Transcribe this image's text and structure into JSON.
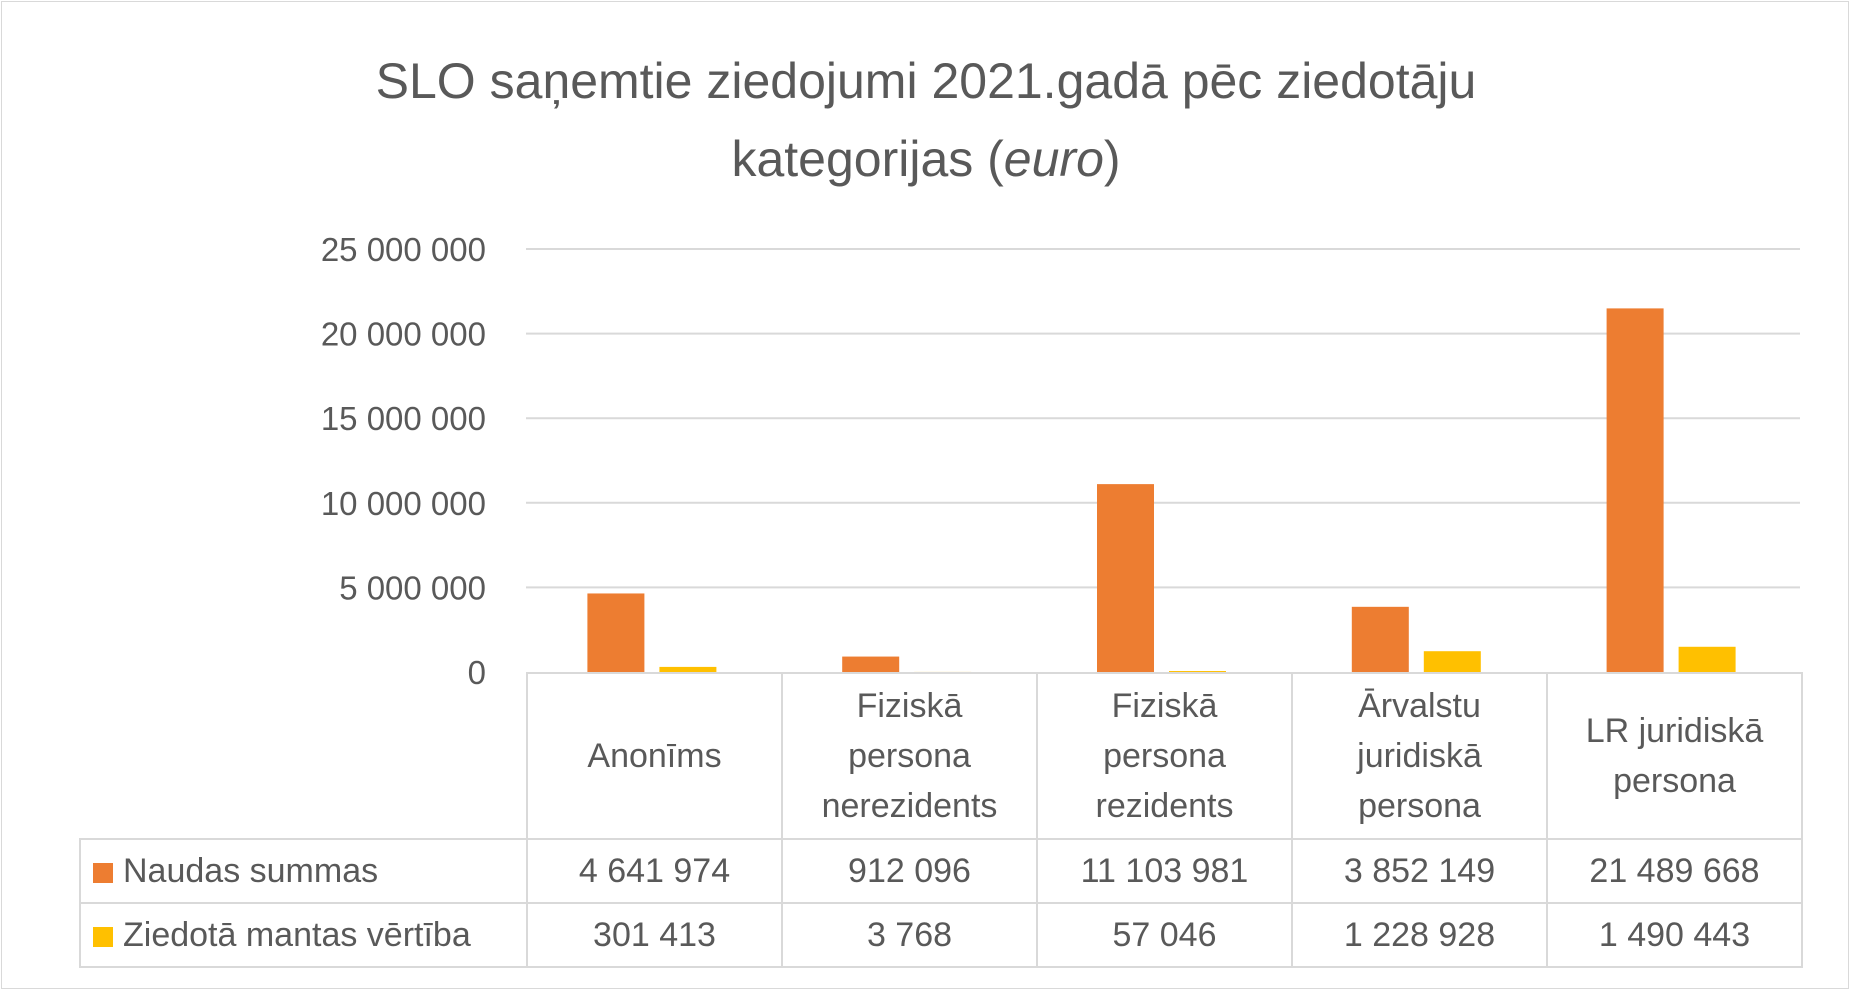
{
  "chart_data": {
    "type": "bar",
    "title_main": "SLO saņemtie ziedojumi 2021.gadā pēc ziedotāju",
    "title_rest": "kategorijas (",
    "title_italic": "euro",
    "title_close": ")",
    "categories": [
      "Anonīms",
      "Fiziskā persona nerezidents",
      "Fiziskā persona rezidents",
      "Ārvalstu juridiskā persona",
      "LR juridiskā persona"
    ],
    "series": [
      {
        "name": "Naudas summas",
        "color": "#ED7D31",
        "values": [
          4641974,
          912096,
          11103981,
          3852149,
          21489668
        ],
        "labels": [
          "4 641 974",
          "912 096",
          "11 103 981",
          "3 852 149",
          "21 489 668"
        ]
      },
      {
        "name": "Ziedotā mantas vērtība",
        "color": "#FFC000",
        "values": [
          301413,
          3768,
          57046,
          1228928,
          1490443
        ],
        "labels": [
          "301 413",
          "3 768",
          "57 046",
          "1 228 928",
          "1 490 443"
        ]
      }
    ],
    "y_ticks": [
      "0",
      "5 000 000",
      "10 000 000",
      "15 000 000",
      "20 000 000",
      "25 000 000"
    ],
    "ylim": [
      0,
      25000000
    ],
    "grid": true,
    "legend": "data-table"
  }
}
